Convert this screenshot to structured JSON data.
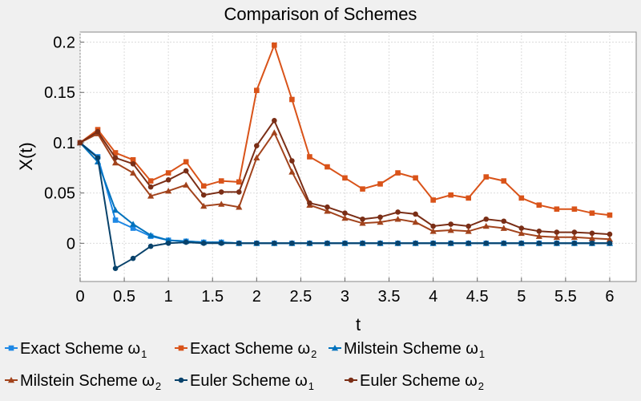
{
  "chart_data": {
    "type": "line",
    "title": "Comparison of Schemes",
    "xlabel": "t",
    "ylabel": "X(t)",
    "xlim": [
      0,
      6.3
    ],
    "ylim": [
      -0.038,
      0.21
    ],
    "xticks": [
      {
        "value": 0,
        "label": "0"
      },
      {
        "value": 0.5,
        "label": "0.5"
      },
      {
        "value": 1,
        "label": "1"
      },
      {
        "value": 1.5,
        "label": "1.5"
      },
      {
        "value": 2,
        "label": "2"
      },
      {
        "value": 2.5,
        "label": "2.5"
      },
      {
        "value": 3,
        "label": "3"
      },
      {
        "value": 3.5,
        "label": "3.5"
      },
      {
        "value": 4,
        "label": "4"
      },
      {
        "value": 4.5,
        "label": "4.5"
      },
      {
        "value": 5,
        "label": "5"
      },
      {
        "value": 5.5,
        "label": "5.5"
      },
      {
        "value": 6,
        "label": "6"
      }
    ],
    "yticks": [
      {
        "value": 0,
        "label": "0"
      },
      {
        "value": 0.05,
        "label": "0.05"
      },
      {
        "value": 0.1,
        "label": "0.1"
      },
      {
        "value": 0.15,
        "label": "0.15"
      },
      {
        "value": 0.2,
        "label": "0.2"
      }
    ],
    "grid": true,
    "legend_position": "bottom",
    "x": [
      0,
      0.2,
      0.4,
      0.6,
      0.8,
      1.0,
      1.2,
      1.4,
      1.6,
      1.8,
      2.0,
      2.2,
      2.4,
      2.6,
      2.8,
      3.0,
      3.2,
      3.4,
      3.6,
      3.8,
      4.0,
      4.2,
      4.4,
      4.6,
      4.8,
      5.0,
      5.2,
      5.4,
      5.6,
      5.8,
      6.0
    ],
    "series": [
      {
        "name": "Exact Scheme ω",
        "sub": "1",
        "color": "#1e88e5",
        "marker": "square",
        "values": [
          0.1,
          0.086,
          0.023,
          0.015,
          0.007,
          0.003,
          0.002,
          0.001,
          0.001,
          0,
          0,
          0,
          0,
          0,
          0,
          0,
          0,
          0,
          0,
          0,
          0,
          0,
          0,
          0,
          0,
          0,
          0,
          0,
          0,
          0,
          0
        ]
      },
      {
        "name": "Exact Scheme ω",
        "sub": "2",
        "color": "#d95319",
        "marker": "square",
        "values": [
          0.1,
          0.113,
          0.09,
          0.083,
          0.062,
          0.07,
          0.081,
          0.057,
          0.062,
          0.061,
          0.152,
          0.197,
          0.143,
          0.086,
          0.076,
          0.065,
          0.054,
          0.059,
          0.07,
          0.065,
          0.043,
          0.048,
          0.045,
          0.066,
          0.062,
          0.045,
          0.038,
          0.034,
          0.034,
          0.03,
          0.028
        ]
      },
      {
        "name": "Milstein Scheme  ω",
        "sub": "1",
        "color": "#0072bd",
        "marker": "triangle",
        "values": [
          0.1,
          0.081,
          0.033,
          0.019,
          0.008,
          0.003,
          0.002,
          0.001,
          0.001,
          0,
          0,
          0,
          0,
          0,
          0,
          0,
          0,
          0,
          0,
          0,
          0,
          0,
          0,
          0,
          0,
          0,
          0,
          0,
          0,
          0,
          0
        ]
      },
      {
        "name": "Milstein Scheme  ω",
        "sub": "2",
        "color": "#a2431c",
        "marker": "triangle",
        "values": [
          0.1,
          0.109,
          0.08,
          0.07,
          0.047,
          0.052,
          0.058,
          0.037,
          0.039,
          0.036,
          0.085,
          0.11,
          0.071,
          0.038,
          0.032,
          0.025,
          0.02,
          0.021,
          0.024,
          0.021,
          0.012,
          0.013,
          0.012,
          0.017,
          0.015,
          0.01,
          0.007,
          0.006,
          0.006,
          0.005,
          0.004
        ]
      },
      {
        "name": "Euler Scheme  ω",
        "sub": "1",
        "color": "#08426b",
        "marker": "circle",
        "values": [
          0.1,
          0.085,
          -0.025,
          -0.015,
          -0.003,
          0,
          0.001,
          0,
          0,
          0,
          0,
          0,
          0,
          0,
          0,
          0,
          0,
          0,
          0,
          0,
          0,
          0,
          0,
          0,
          0,
          0,
          0,
          0,
          0,
          0,
          0
        ]
      },
      {
        "name": "Euler Scheme  ω",
        "sub": "2",
        "color": "#7a2e16",
        "marker": "circle",
        "values": [
          0.1,
          0.111,
          0.085,
          0.079,
          0.056,
          0.063,
          0.072,
          0.048,
          0.051,
          0.051,
          0.097,
          0.122,
          0.082,
          0.04,
          0.036,
          0.03,
          0.024,
          0.026,
          0.031,
          0.029,
          0.017,
          0.019,
          0.017,
          0.024,
          0.022,
          0.015,
          0.012,
          0.011,
          0.011,
          0.01,
          0.009
        ]
      }
    ]
  }
}
